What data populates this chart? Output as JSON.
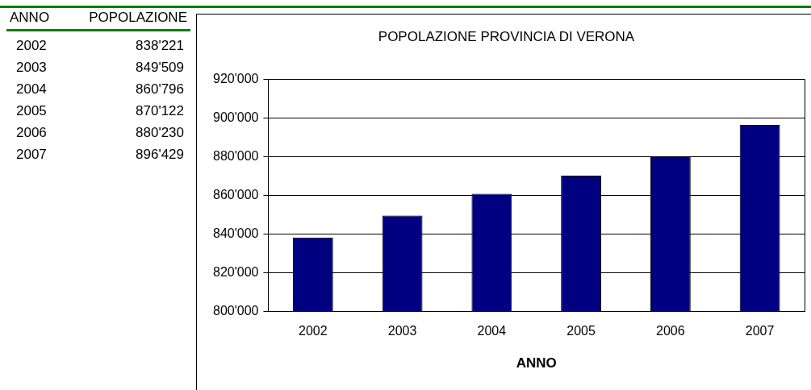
{
  "chart_data": {
    "type": "bar",
    "title": "POPOLAZIONE PROVINCIA DI VERONA",
    "xlabel": "ANNO",
    "categories": [
      "2002",
      "2003",
      "2004",
      "2005",
      "2006",
      "2007"
    ],
    "values": [
      838221,
      849509,
      860796,
      870122,
      880230,
      896429
    ],
    "color": "#000080",
    "annotations": [
      "POPOLAZIONE",
      "838'221",
      "849'509",
      "860'796",
      "870'122",
      "880'230",
      "896'429"
    ],
    "ylim": [
      800000,
      920000
    ],
    "yticks": [
      {
        "value": 800000,
        "label": "800'000"
      },
      {
        "value": 820000,
        "label": "820'000"
      },
      {
        "value": 840000,
        "label": "840'000"
      },
      {
        "value": 860000,
        "label": "860'000"
      },
      {
        "value": 880000,
        "label": "880'000"
      },
      {
        "value": 900000,
        "label": "900'000"
      },
      {
        "value": 920000,
        "label": "920'000"
      }
    ],
    "grid": "y",
    "legend": false
  }
}
